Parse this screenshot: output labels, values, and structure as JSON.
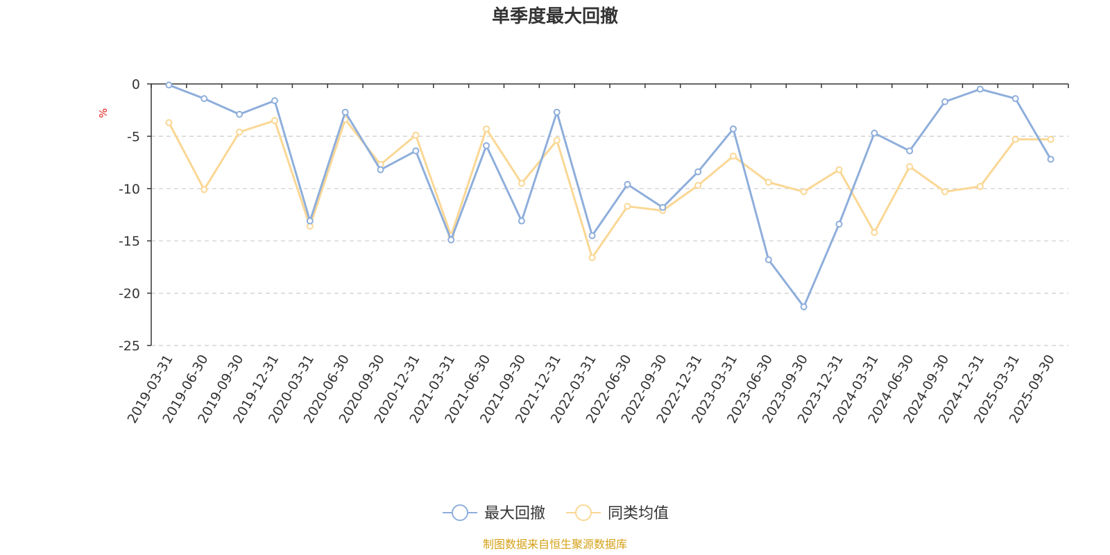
{
  "chart_data": {
    "type": "line",
    "title": "单季度最大回撤",
    "ylabel": "%",
    "ylim": [
      -25,
      0
    ],
    "yticks": [
      0,
      -5,
      -10,
      -15,
      -20,
      -25
    ],
    "grid": true,
    "legend_position": "bottom",
    "categories": [
      "2019-03-31",
      "2019-06-30",
      "2019-09-30",
      "2019-12-31",
      "2020-03-31",
      "2020-06-30",
      "2020-09-30",
      "2020-12-31",
      "2021-03-31",
      "2021-06-30",
      "2021-09-30",
      "2021-12-31",
      "2022-03-31",
      "2022-06-30",
      "2022-09-30",
      "2022-12-31",
      "2023-03-31",
      "2023-06-30",
      "2023-09-30",
      "2023-12-31",
      "2024-03-31",
      "2024-06-30",
      "2024-09-30",
      "2024-12-31",
      "2025-03-31",
      "2025-09-30"
    ],
    "series": [
      {
        "name": "最大回撤",
        "color": "#8eaedb",
        "values": [
          -0.1,
          -1.4,
          -2.9,
          -1.6,
          -13.1,
          -2.7,
          -8.2,
          -6.4,
          -14.9,
          -5.9,
          -13.1,
          -2.7,
          -14.5,
          -9.6,
          -11.8,
          -8.4,
          -4.3,
          -16.8,
          -21.3,
          -13.4,
          -4.7,
          -6.4,
          -1.7,
          -0.5,
          -1.4,
          -7.2
        ]
      },
      {
        "name": "同类均值",
        "color": "#fad794",
        "values": [
          -3.7,
          -10.1,
          -4.6,
          -3.5,
          -13.6,
          -3.4,
          -7.7,
          -4.9,
          -14.5,
          -4.3,
          -9.5,
          -5.4,
          -16.6,
          -11.7,
          -12.1,
          -9.7,
          -6.9,
          -9.4,
          -10.3,
          -8.2,
          -14.2,
          -7.9,
          -10.3,
          -9.8,
          -5.3,
          -5.3
        ]
      }
    ],
    "source_note": "制图数据来自恒生聚源数据库"
  }
}
